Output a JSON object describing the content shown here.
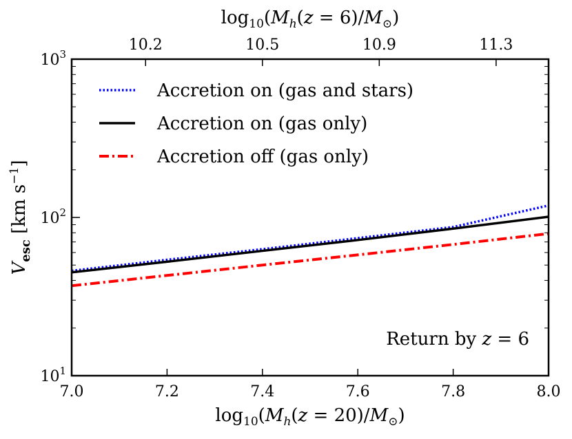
{
  "chart_data": {
    "type": "line",
    "xlabel": "log10(Mh(z = 20)/M⊙)",
    "xlabel_top": "log10(Mh(z = 6)/M⊙)",
    "ylabel": "Vesc [km s−1]",
    "yscale": "log",
    "xlim": [
      7.0,
      8.0
    ],
    "ylim": [
      10,
      1000
    ],
    "x_ticks": [
      7.0,
      7.2,
      7.4,
      7.6,
      7.8,
      8.0
    ],
    "x_tick_labels": [
      "7.0",
      "7.2",
      "7.4",
      "7.6",
      "7.8",
      "8.0"
    ],
    "top_ticks_bottom_value": [
      7.155,
      7.4,
      7.645,
      7.89
    ],
    "top_tick_labels": [
      "10.2",
      "10.5",
      "10.9",
      "11.3"
    ],
    "y_ticks": [
      10,
      100,
      1000
    ],
    "y_tick_labels": [
      {
        "base": "10",
        "exp": "1"
      },
      {
        "base": "10",
        "exp": "2"
      },
      {
        "base": "10",
        "exp": "3"
      }
    ],
    "x": [
      7.0,
      7.2,
      7.4,
      7.6,
      7.8,
      8.0
    ],
    "series": [
      {
        "name": "Accretion on (gas and stars)",
        "color": "#0000ff",
        "style": "dotted",
        "values": [
          46,
          54,
          63,
          74,
          87,
          119
        ]
      },
      {
        "name": "Accretion on (gas only)",
        "color": "#000000",
        "style": "solid",
        "values": [
          45,
          52.5,
          61.5,
          72,
          85,
          101
        ]
      },
      {
        "name": "Accretion off (gas only)",
        "color": "#ff0000",
        "style": "dashdot",
        "values": [
          37,
          43,
          50,
          58,
          67.5,
          79
        ]
      }
    ],
    "legend_position": "top-left",
    "annotation": "Return by z = 6"
  }
}
